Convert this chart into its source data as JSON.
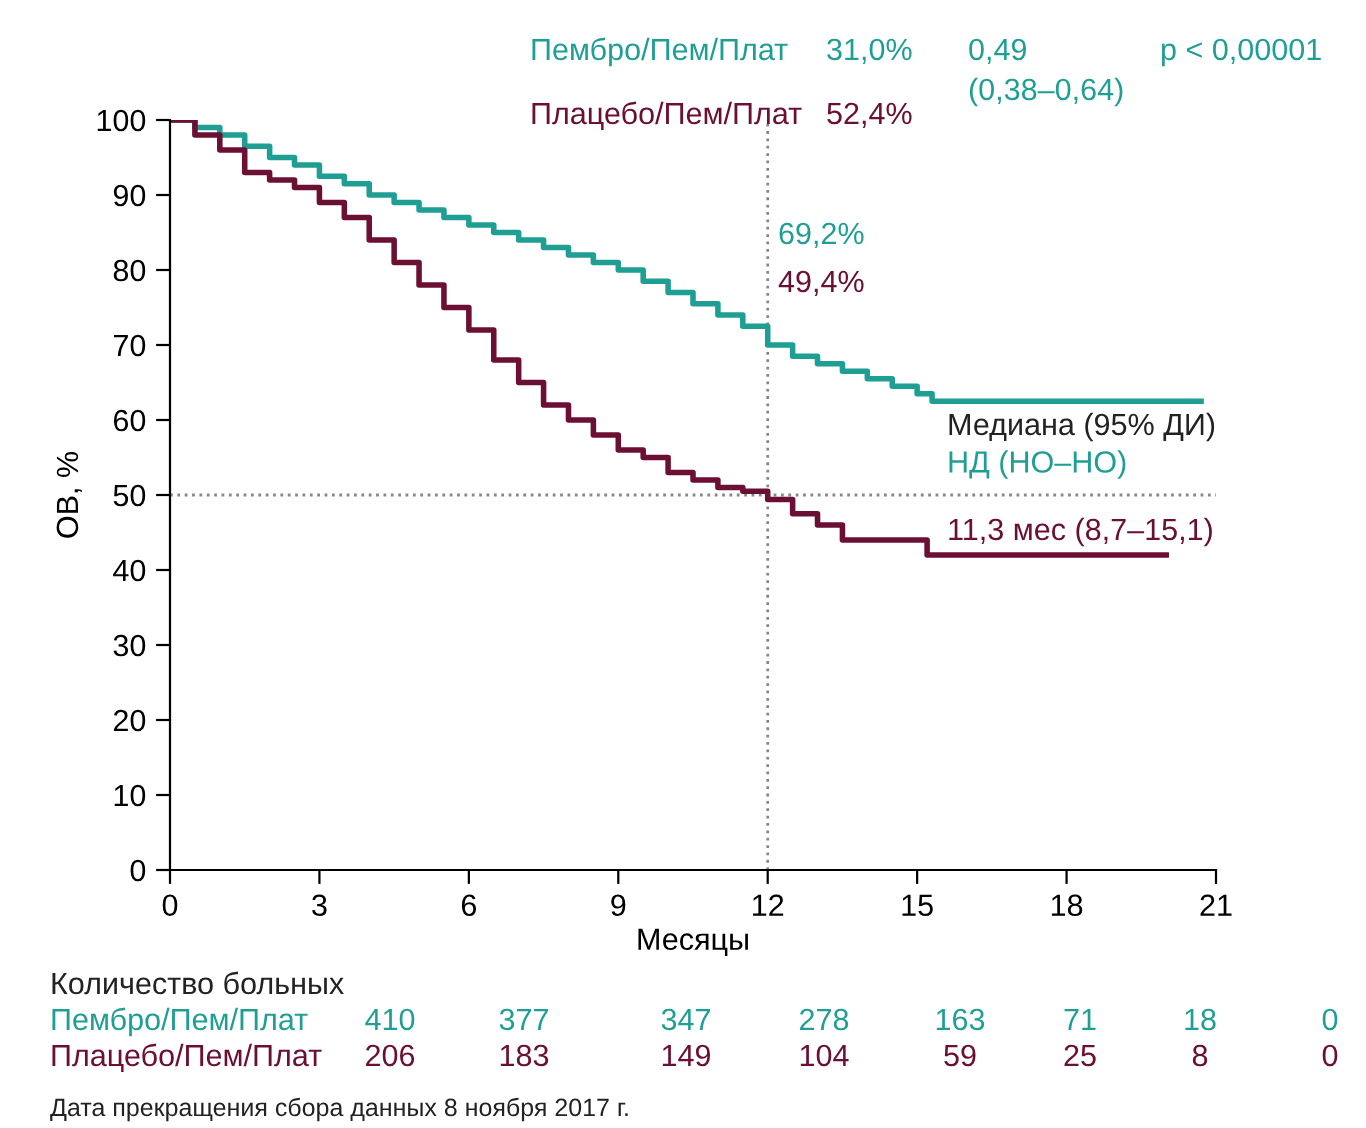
{
  "chart_data": {
    "type": "step",
    "xlabel": "Месяцы",
    "ylabel": "ОВ, %",
    "xlim": [
      0,
      21
    ],
    "xticks": [
      0,
      3,
      6,
      9,
      12,
      15,
      18,
      21
    ],
    "ylim": [
      0,
      100
    ],
    "yticks": [
      0,
      10,
      20,
      30,
      40,
      50,
      60,
      70,
      80,
      90,
      100
    ],
    "grid": false,
    "legend": false,
    "marker": "none",
    "line_style": "solid",
    "series": [
      {
        "name": "Пембро/Пем/Плат",
        "color": "#1f9e94",
        "x": [
          0,
          0.5,
          1,
          1.5,
          2,
          2.5,
          3,
          3.5,
          4,
          4.5,
          5,
          5.5,
          6,
          6.5,
          7,
          7.5,
          8,
          8.5,
          9,
          9.5,
          10,
          10.5,
          11,
          11.5,
          12,
          12.5,
          13,
          13.5,
          14,
          14.5,
          15,
          15.3,
          20.7
        ],
        "values": [
          100,
          99,
          98,
          96.5,
          95,
          94,
          92.5,
          91.5,
          90,
          89,
          88,
          87,
          86,
          85,
          84,
          83,
          82,
          81,
          80,
          78.5,
          77,
          75.5,
          74,
          72.5,
          70,
          68.5,
          67.5,
          66.5,
          65.5,
          64.5,
          63.5,
          62.5,
          62.5
        ]
      },
      {
        "name": "Плацебо/Пем/Плат",
        "color": "#6b1034",
        "x": [
          0,
          0.5,
          1,
          1.5,
          2,
          2.5,
          3,
          3.5,
          4,
          4.5,
          5,
          5.5,
          6,
          6.5,
          7,
          7.5,
          8,
          8.5,
          9,
          9.5,
          10,
          10.5,
          11,
          11.5,
          12,
          12.5,
          13,
          13.5,
          14,
          15.2,
          20
        ],
        "values": [
          100,
          98,
          96,
          93,
          92,
          91,
          89,
          87,
          84,
          81,
          78,
          75,
          72,
          68,
          65,
          62,
          60,
          58,
          56,
          55,
          53,
          52,
          51,
          50.5,
          49.4,
          47.5,
          46,
          44,
          44,
          42,
          42
        ]
      }
    ],
    "ref_lines": [
      {
        "axis": "y",
        "value": 50,
        "color": "#888888",
        "line_style": "dotted"
      },
      {
        "axis": "x",
        "value": 12,
        "color": "#888888",
        "line_style": "dotted"
      }
    ],
    "annotations": [
      "31,0%",
      "0,49",
      "(0,38–0,64)",
      "p < 0,00001",
      "52,4%",
      "69,2%",
      "49,4%",
      "Медиана (95% ДИ)",
      "НД (НО–НО)",
      "11,3 мес (8,7–15,1)",
      "Количество больных",
      "Пембро/Пем/Плат 410 377 347 278 163 71 18 0",
      "Плацебо/Пем/Плат 206 183 149 104 59 25 8 0",
      "Дата прекращения сбора данных 8 ноября 2017 г."
    ]
  }
}
